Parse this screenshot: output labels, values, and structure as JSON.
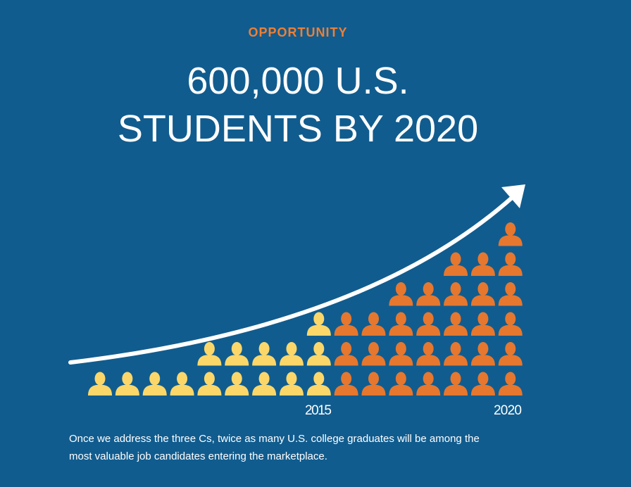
{
  "label": "OPPORTUNITY",
  "title": [
    "600,000 U.S.",
    "STUDENTS BY 2020"
  ],
  "pictograph": {
    "columns": [
      {
        "count": 1,
        "color": "#fbd76a"
      },
      {
        "count": 1,
        "color": "#fbd76a"
      },
      {
        "count": 1,
        "color": "#fbd76a"
      },
      {
        "count": 1,
        "color": "#fbd76a"
      },
      {
        "count": 2,
        "color": "#fbd76a"
      },
      {
        "count": 2,
        "color": "#fbd76a"
      },
      {
        "count": 2,
        "color": "#fbd76a"
      },
      {
        "count": 2,
        "color": "#fbd76a"
      },
      {
        "count": 3,
        "color": "#fbd76a"
      },
      {
        "count": 3,
        "color": "#e6772e"
      },
      {
        "count": 3,
        "color": "#e6772e"
      },
      {
        "count": 4,
        "color": "#e6772e"
      },
      {
        "count": 4,
        "color": "#e6772e"
      },
      {
        "count": 5,
        "color": "#e6772e"
      },
      {
        "count": 5,
        "color": "#e6772e"
      },
      {
        "count": 6,
        "color": "#e6772e"
      }
    ],
    "years": [
      "2015",
      "2020"
    ]
  },
  "caption": [
    "Once we address the three Cs, twice as many U.S. college graduates will be among the",
    "most valuable job candidates entering the marketplace."
  ]
}
